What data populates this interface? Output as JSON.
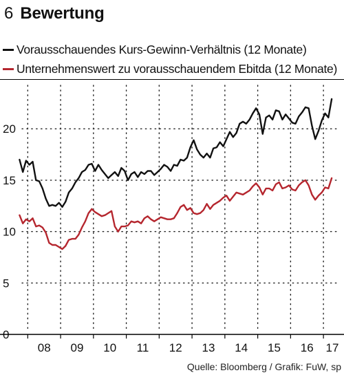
{
  "header": {
    "number": "6",
    "title": "Bewertung"
  },
  "source": "Quelle: Bloomberg / Grafik: FuW, sp",
  "colors": {
    "series1": "#111111",
    "series2": "#b5262e",
    "grid": "#222222"
  },
  "chart_data": {
    "type": "line",
    "title": "Bewertung",
    "xlabel": "",
    "ylabel": "",
    "x_ticks": [
      "08",
      "09",
      "10",
      "11",
      "12",
      "13",
      "14",
      "15",
      "16",
      "17"
    ],
    "xlim": [
      2007.7,
      2017.5
    ],
    "y_ticks": [
      0,
      5,
      10,
      15,
      20
    ],
    "ylim": [
      0,
      24.5
    ],
    "grid": true,
    "legend": "top-left",
    "series": [
      {
        "name": "Vorausschauendes Kurs-Gewinn-Verhältnis (12 Monate)",
        "x": [
          2007.75,
          2007.85,
          2007.95,
          2008.05,
          2008.15,
          2008.25,
          2008.35,
          2008.45,
          2008.55,
          2008.65,
          2008.75,
          2008.85,
          2008.95,
          2009.05,
          2009.15,
          2009.25,
          2009.35,
          2009.45,
          2009.55,
          2009.65,
          2009.75,
          2009.85,
          2009.95,
          2010.05,
          2010.15,
          2010.25,
          2010.35,
          2010.45,
          2010.55,
          2010.65,
          2010.75,
          2010.85,
          2010.95,
          2011.05,
          2011.15,
          2011.25,
          2011.35,
          2011.45,
          2011.55,
          2011.65,
          2011.75,
          2011.85,
          2011.95,
          2012.05,
          2012.15,
          2012.25,
          2012.35,
          2012.45,
          2012.55,
          2012.65,
          2012.75,
          2012.85,
          2012.95,
          2013.05,
          2013.15,
          2013.25,
          2013.35,
          2013.45,
          2013.55,
          2013.65,
          2013.75,
          2013.85,
          2013.95,
          2014.05,
          2014.15,
          2014.25,
          2014.35,
          2014.45,
          2014.55,
          2014.65,
          2014.75,
          2014.85,
          2014.95,
          2015.05,
          2015.15,
          2015.25,
          2015.35,
          2015.45,
          2015.55,
          2015.65,
          2015.75,
          2015.85,
          2015.95,
          2016.05,
          2016.15,
          2016.25,
          2016.35,
          2016.45,
          2016.55,
          2016.65,
          2016.75,
          2016.85,
          2016.95,
          2017.05,
          2017.15,
          2017.25
        ],
        "y": [
          17.0,
          15.8,
          16.9,
          16.5,
          16.8,
          15.0,
          14.9,
          14.2,
          13.2,
          12.5,
          12.6,
          12.5,
          12.8,
          12.4,
          12.9,
          13.8,
          14.2,
          14.8,
          15.2,
          15.8,
          16.0,
          16.5,
          16.6,
          15.9,
          16.5,
          16.0,
          15.6,
          15.2,
          15.5,
          15.8,
          15.4,
          16.2,
          15.9,
          15.0,
          15.6,
          15.8,
          15.3,
          15.8,
          15.6,
          15.9,
          15.9,
          15.5,
          15.8,
          16.1,
          16.5,
          16.3,
          15.9,
          16.5,
          16.4,
          17.0,
          16.9,
          17.2,
          18.2,
          18.9,
          18.0,
          17.5,
          17.2,
          17.6,
          17.2,
          18.1,
          18.2,
          18.7,
          18.3,
          19.0,
          19.7,
          19.2,
          19.6,
          20.5,
          20.7,
          20.5,
          20.9,
          21.5,
          22.0,
          21.4,
          19.5,
          21.1,
          21.3,
          20.9,
          21.8,
          21.7,
          20.9,
          21.4,
          21.0,
          20.6,
          20.5,
          21.2,
          21.6,
          22.1,
          22.0,
          20.3,
          19.0,
          19.8,
          20.8,
          21.5,
          21.1,
          22.9
        ]
      },
      {
        "name": "Unternehmenswert zu vorausschauendem Ebitda (12 Monate)",
        "x": [
          2007.75,
          2007.85,
          2007.95,
          2008.05,
          2008.15,
          2008.25,
          2008.35,
          2008.45,
          2008.55,
          2008.65,
          2008.75,
          2008.85,
          2008.95,
          2009.05,
          2009.15,
          2009.25,
          2009.35,
          2009.45,
          2009.55,
          2009.65,
          2009.75,
          2009.85,
          2009.95,
          2010.05,
          2010.15,
          2010.25,
          2010.35,
          2010.45,
          2010.55,
          2010.65,
          2010.75,
          2010.85,
          2010.95,
          2011.05,
          2011.15,
          2011.25,
          2011.35,
          2011.45,
          2011.55,
          2011.65,
          2011.75,
          2011.85,
          2011.95,
          2012.05,
          2012.15,
          2012.25,
          2012.35,
          2012.45,
          2012.55,
          2012.65,
          2012.75,
          2012.85,
          2012.95,
          2013.05,
          2013.15,
          2013.25,
          2013.35,
          2013.45,
          2013.55,
          2013.65,
          2013.75,
          2013.85,
          2013.95,
          2014.05,
          2014.15,
          2014.25,
          2014.35,
          2014.45,
          2014.55,
          2014.65,
          2014.75,
          2014.85,
          2014.95,
          2015.05,
          2015.15,
          2015.25,
          2015.35,
          2015.45,
          2015.55,
          2015.65,
          2015.75,
          2015.85,
          2015.95,
          2016.05,
          2016.15,
          2016.25,
          2016.35,
          2016.45,
          2016.55,
          2016.65,
          2016.75,
          2016.85,
          2016.95,
          2017.05,
          2017.15,
          2017.25
        ],
        "y": [
          11.6,
          10.8,
          11.2,
          11.0,
          11.3,
          10.5,
          10.6,
          10.4,
          9.9,
          8.9,
          8.7,
          8.7,
          8.5,
          8.3,
          8.6,
          9.2,
          9.3,
          9.3,
          9.7,
          10.4,
          11.0,
          11.8,
          12.2,
          11.9,
          11.7,
          11.5,
          11.6,
          11.8,
          12.0,
          10.5,
          10.0,
          10.5,
          10.5,
          10.6,
          11.0,
          10.9,
          11.0,
          10.8,
          11.3,
          11.5,
          11.2,
          11.0,
          11.2,
          11.4,
          11.3,
          11.2,
          11.2,
          11.3,
          11.8,
          12.4,
          12.6,
          12.1,
          12.3,
          11.8,
          11.7,
          11.8,
          12.1,
          12.7,
          12.2,
          12.6,
          12.8,
          13.0,
          13.3,
          13.5,
          13.0,
          13.4,
          13.8,
          13.7,
          13.6,
          13.8,
          14.0,
          14.4,
          14.7,
          14.3,
          13.6,
          14.2,
          14.2,
          14.0,
          14.6,
          14.8,
          14.2,
          14.3,
          14.5,
          14.1,
          14.0,
          14.5,
          14.8,
          15.0,
          14.5,
          13.6,
          13.1,
          13.5,
          13.8,
          14.3,
          14.2,
          15.2
        ]
      }
    ]
  }
}
